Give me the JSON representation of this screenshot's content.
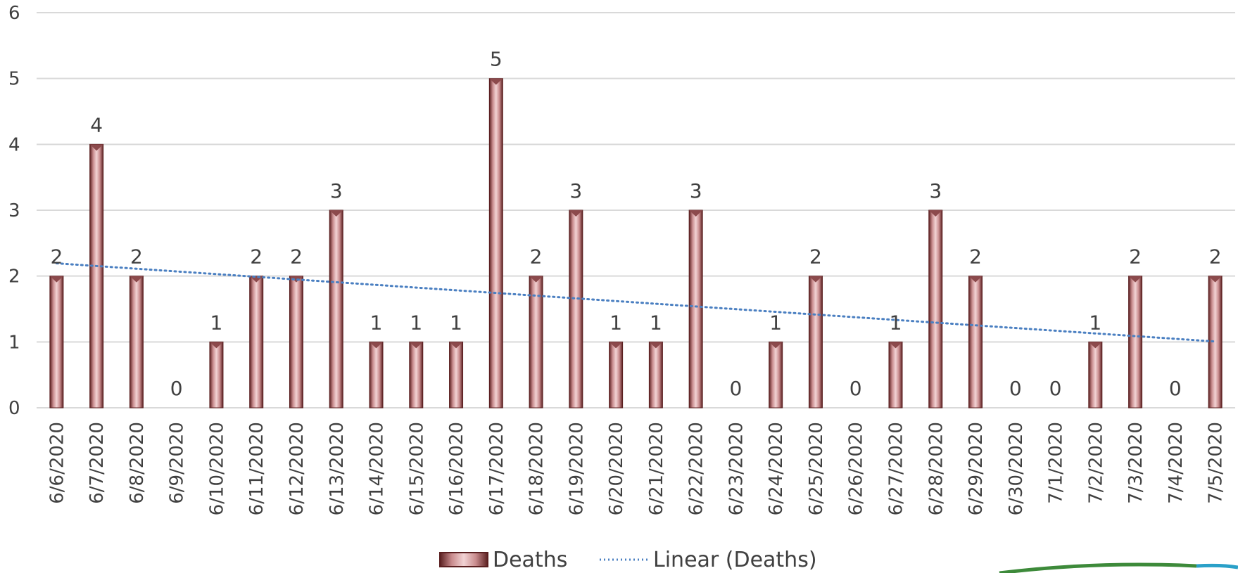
{
  "chart_data": {
    "type": "bar",
    "categories": [
      "6/6/2020",
      "6/7/2020",
      "6/8/2020",
      "6/9/2020",
      "6/10/2020",
      "6/11/2020",
      "6/12/2020",
      "6/13/2020",
      "6/14/2020",
      "6/15/2020",
      "6/16/2020",
      "6/17/2020",
      "6/18/2020",
      "6/19/2020",
      "6/20/2020",
      "6/21/2020",
      "6/22/2020",
      "6/23/2020",
      "6/24/2020",
      "6/25/2020",
      "6/26/2020",
      "6/27/2020",
      "6/28/2020",
      "6/29/2020",
      "6/30/2020",
      "7/1/2020",
      "7/2/2020",
      "7/3/2020",
      "7/4/2020",
      "7/5/2020"
    ],
    "series": [
      {
        "name": "Deaths",
        "values": [
          2,
          4,
          2,
          0,
          1,
          2,
          2,
          3,
          1,
          1,
          1,
          5,
          2,
          3,
          1,
          1,
          3,
          0,
          1,
          2,
          0,
          1,
          3,
          2,
          0,
          0,
          1,
          2,
          0,
          2
        ]
      }
    ],
    "trendline": {
      "name": "Linear (Deaths)",
      "type": "linear",
      "style": "dotted"
    },
    "ylim": [
      0,
      6
    ],
    "yticks": [
      0,
      1,
      2,
      3,
      4,
      5,
      6
    ],
    "grid": true,
    "data_labels": true,
    "legend_position": "bottom",
    "colors": {
      "bar_fill": "#c98c8e",
      "bar_edge": "#5a1f20",
      "trend": "#4a7fc1",
      "grid": "#d9d9d9",
      "text": "#404040"
    }
  }
}
